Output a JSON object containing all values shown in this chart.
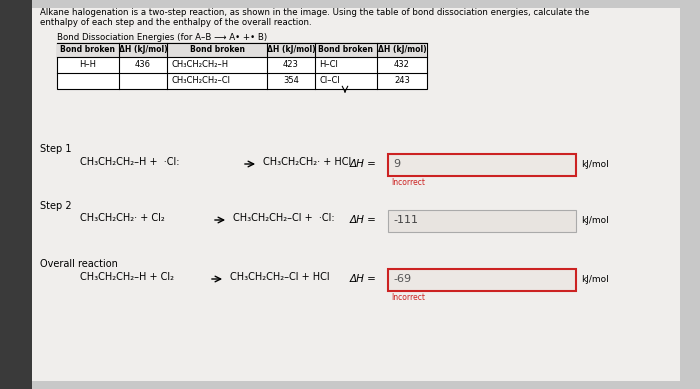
{
  "bg_left_color": "#3a3a3a",
  "bg_right_color": "#c8c8c8",
  "panel_color": "#f0eeec",
  "title_text1": "Alkane halogenation is a two-step reaction, as shown in the image. Using the table of bond dissociation energies, calculate the",
  "title_text2": "enthalpy of each step and the enthalpy of the overall reaction.",
  "table_title": "Bond Dissociation Energies (for A–B ⟶ A• +• B)",
  "col0_header": "Bond broken",
  "col1_header": "ΔH (kJ/mol)",
  "col2_header": "Bond broken",
  "col3_header": "ΔH (kJ/mol)",
  "col4_header": "Bond broken",
  "col5_header": "ΔH (kJ/mol)",
  "row1_c0": "H–H",
  "row1_c1": "436",
  "row1_c2": "CH₃CH₂CH₂–H",
  "row1_c3": "423",
  "row1_c4": "H–Cl",
  "row1_c5": "432",
  "row2_c2": "CH₃CH₂CH₂–Cl",
  "row2_c3": "354",
  "row2_c4": "Cl–Cl",
  "row2_c5": "243",
  "step1_label": "Step 1",
  "step1_react": "CH₃CH₂CH₂–H +  ·Cl:",
  "step1_prod": "CH₃CH₂CH₂· + HCl",
  "step1_dH": "ΔH =",
  "step1_val": "9",
  "step1_incorrect": "Incorrect",
  "step2_label": "Step 2",
  "step2_react": "CH₃CH₂CH₂· + Cl₂",
  "step2_prod": "CH₃CH₂CH₂–Cl +  ·Cl:",
  "step2_dH": "ΔH =",
  "step2_val": "-111",
  "overall_label": "Overall reaction",
  "overall_react": "CH₃CH₂CH₂–H + Cl₂",
  "overall_prod": "CH₃CH₂CH₂–Cl + HCl",
  "overall_dH": "ΔH =",
  "overall_val": "-69",
  "overall_incorrect": "Incorrect",
  "kJ_mol": "kJ/mol",
  "red_border": "#cc2222",
  "gray_border": "#aaaaaa",
  "incorrect_color": "#cc2222",
  "box_fill": "#e8e4e0",
  "box_fill_red": "#ece8e4"
}
